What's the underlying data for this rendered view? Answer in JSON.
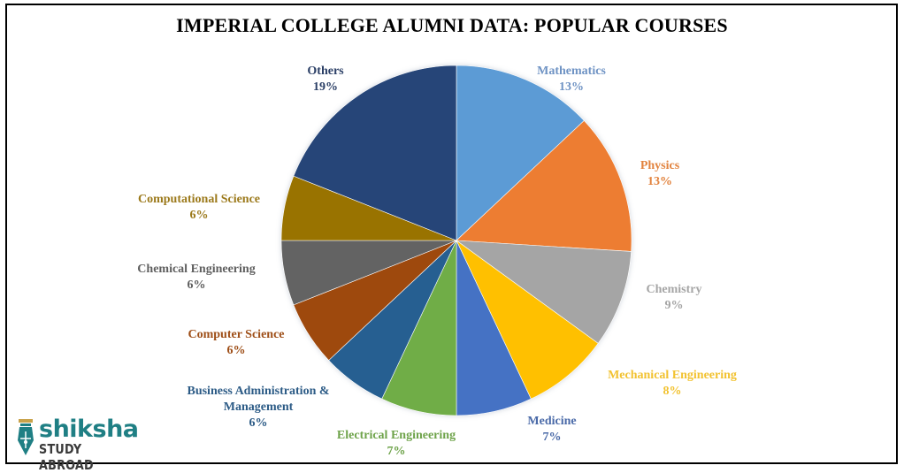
{
  "header": {
    "title": "IMPERIAL COLLEGE ALUMNI DATA: POPULAR COURSES"
  },
  "logo": {
    "brand": "shiksha",
    "tagline": "STUDY ABROAD",
    "icon": "pen-nib-icon",
    "color": "#1f7f84"
  },
  "chart_data": {
    "type": "pie",
    "title": "IMPERIAL COLLEGE ALUMNI DATA: POPULAR COURSES",
    "start_angle": "12 o'clock, clockwise",
    "categories": [
      "Mathematics",
      "Physics",
      "Chemistry",
      "Mechanical Engineering",
      "Medicine",
      "Electrical Engineering",
      "Business Administration & Management",
      "Computer Science",
      "Chemical Engineering",
      "Computational Science",
      "Others"
    ],
    "values": [
      13,
      13,
      9,
      8,
      7,
      7,
      6,
      6,
      6,
      6,
      19
    ],
    "unit": "%",
    "colors": [
      "#5B9BD5",
      "#ED7D31",
      "#A5A5A5",
      "#FFC000",
      "#4472C4",
      "#70AD47",
      "#255E91",
      "#9E480E",
      "#636363",
      "#997300",
      "#264478"
    ],
    "labels": [
      {
        "name": "Mathematics",
        "value": "13%",
        "color": "#6f93c4"
      },
      {
        "name": "Physics",
        "value": "13%",
        "color": "#e2833e"
      },
      {
        "name": "Chemistry",
        "value": "9%",
        "color": "#a5a5a5"
      },
      {
        "name": "Mechanical Engineering",
        "value": "8%",
        "color": "#f2c230"
      },
      {
        "name": "Medicine",
        "value": "7%",
        "color": "#4a6aa8"
      },
      {
        "name": "Electrical Engineering",
        "value": "7%",
        "color": "#6ea34a"
      },
      {
        "name_line1": "Business Administration  &",
        "name_line2": "Management",
        "value": "6%",
        "color": "#2c5b86"
      },
      {
        "name": "Computer  Science",
        "value": "6%",
        "color": "#9e4e17"
      },
      {
        "name": "Chemical  Engineering",
        "value": "6%",
        "color": "#5f5f5f"
      },
      {
        "name": "Computational  Science",
        "value": "6%",
        "color": "#9c7a1c"
      },
      {
        "name": "Others",
        "value": "19%",
        "color": "#2b3f66"
      }
    ],
    "legend": "none (data labels)"
  }
}
